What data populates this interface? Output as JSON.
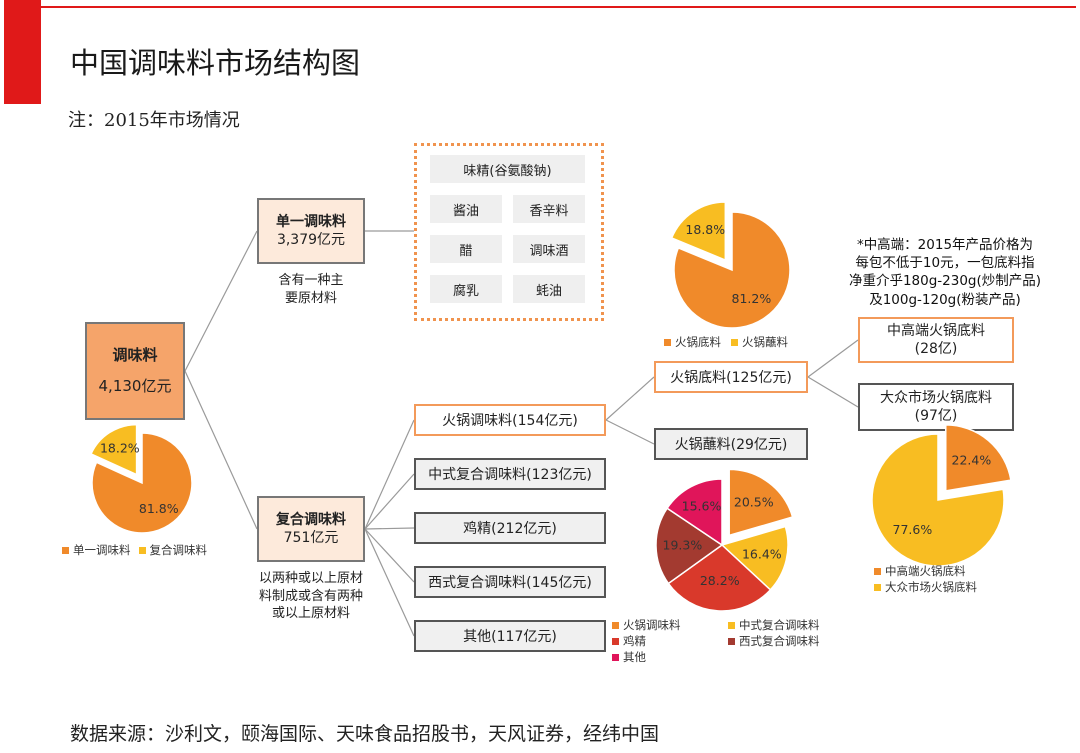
{
  "title": "中国调味料市场结构图",
  "note": "注：2015年市场情况",
  "source": "数据来源：沙利文，颐海国际、天味食品招股书，天风证券，经纬中国",
  "root": {
    "name": "调味料",
    "value": "4,130亿元"
  },
  "single": {
    "name": "单一调味料",
    "value": "3,379亿元",
    "desc_line1": "含有一种主",
    "desc_line2": "要原材料"
  },
  "single_items": {
    "msg": "味精(谷氨酸钠)",
    "soy": "酱油",
    "spice": "香辛料",
    "vinegar": "醋",
    "wine": "调味酒",
    "tofu": "腐乳",
    "oyster": "蚝油"
  },
  "compound": {
    "name": "复合调味料",
    "value": "751亿元",
    "desc_line1": "以两种或以上原材",
    "desc_line2": "料制成或含有两种",
    "desc_line3": "或以上原材料"
  },
  "compound_items": {
    "hotpot": "火锅调味料(154亿元)",
    "chinese": "中式复合调味料(123亿元)",
    "chicken": "鸡精(212亿元)",
    "western": "西式复合调味料(145亿元)",
    "other": "其他(117亿元)"
  },
  "hotpot_items": {
    "base": "火锅底料(125亿元)",
    "dip": "火锅蘸料(29亿元)"
  },
  "base_items": {
    "high": {
      "name": "中高端火锅底料",
      "value": "(28亿)"
    },
    "mass": {
      "name": "大众市场火锅底料",
      "value": "(97亿)"
    }
  },
  "high_end_note": {
    "line1": "*中高端：2015年产品价格为",
    "line2": "每包不低于10元，一包底料指",
    "line3": "净重介乎180g-230g(炒制产品)",
    "line4": "及100g-120g(粉装产品)"
  },
  "colors": {
    "orange": "#f08a2a",
    "yellow": "#f8bd22",
    "red": "#d9392b",
    "brown": "#a33a30",
    "magenta": "#e0155a"
  },
  "chart_data": [
    {
      "type": "pie",
      "slices": [
        {
          "label": "单一调味料",
          "value": 81.8,
          "text": "81.8%"
        },
        {
          "label": "复合调味料",
          "value": 18.2,
          "text": "18.2%"
        }
      ]
    },
    {
      "type": "pie",
      "slices": [
        {
          "label": "火锅底料",
          "value": 81.2,
          "text": "81.2%"
        },
        {
          "label": "火锅蘸料",
          "value": 18.8,
          "text": "18.8%"
        }
      ]
    },
    {
      "type": "pie",
      "slices": [
        {
          "label": "火锅调味料",
          "value": 20.5,
          "text": "20.5%"
        },
        {
          "label": "中式复合调味料",
          "value": 16.4,
          "text": "16.4%"
        },
        {
          "label": "鸡精",
          "value": 28.2,
          "text": "28.2%"
        },
        {
          "label": "西式复合调味料",
          "value": 19.3,
          "text": "19.3%"
        },
        {
          "label": "其他",
          "value": 15.6,
          "text": "15.6%"
        }
      ]
    },
    {
      "type": "pie",
      "slices": [
        {
          "label": "中高端火锅底料",
          "value": 22.4,
          "text": "22.4%"
        },
        {
          "label": "大众市场火锅底料",
          "value": 77.6,
          "text": "77.6%"
        }
      ]
    }
  ]
}
